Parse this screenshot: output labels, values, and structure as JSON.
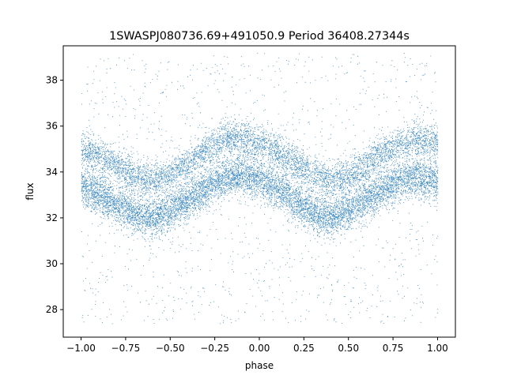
{
  "chart_data": {
    "type": "scatter",
    "title": "1SWASPJ080736.69+491050.9 Period 36408.27344s",
    "xlabel": "phase",
    "ylabel": "flux",
    "xlim": [
      -1.1,
      1.1
    ],
    "ylim": [
      26.8,
      39.5
    ],
    "xticks": [
      "−1.00",
      "−0.75",
      "−0.50",
      "−0.25",
      "0.00",
      "0.25",
      "0.50",
      "0.75",
      "1.00"
    ],
    "xtick_values": [
      -1.0,
      -0.75,
      -0.5,
      -0.25,
      0.0,
      0.25,
      0.5,
      0.75,
      1.0
    ],
    "yticks": [
      "28",
      "30",
      "32",
      "34",
      "36",
      "38"
    ],
    "ytick_values": [
      28,
      30,
      32,
      34,
      36,
      38
    ],
    "grid": false,
    "marker_color": "#1f77b4",
    "series": [
      {
        "band": "upper",
        "x": [
          -1.0,
          -0.9,
          -0.8,
          -0.7,
          -0.6,
          -0.5,
          -0.4,
          -0.3,
          -0.2,
          -0.1,
          0.0,
          0.1,
          0.2,
          0.3,
          0.4,
          0.5,
          0.6,
          0.7,
          0.8,
          0.9,
          1.0
        ],
        "y": [
          35.0,
          34.7,
          34.3,
          33.8,
          33.6,
          33.9,
          34.4,
          35.0,
          35.4,
          35.5,
          35.3,
          34.9,
          34.4,
          33.9,
          33.6,
          33.8,
          34.3,
          34.9,
          35.3,
          35.4,
          35.3
        ]
      },
      {
        "band": "lower",
        "x": [
          -1.0,
          -0.9,
          -0.8,
          -0.7,
          -0.6,
          -0.5,
          -0.4,
          -0.3,
          -0.2,
          -0.1,
          0.0,
          0.1,
          0.2,
          0.3,
          0.4,
          0.5,
          0.6,
          0.7,
          0.8,
          0.9,
          1.0
        ],
        "y": [
          33.4,
          33.0,
          32.6,
          32.2,
          32.0,
          32.3,
          32.8,
          33.3,
          33.7,
          33.9,
          33.7,
          33.3,
          32.7,
          32.2,
          32.0,
          32.3,
          32.8,
          33.3,
          33.7,
          33.8,
          33.6
        ]
      }
    ]
  }
}
